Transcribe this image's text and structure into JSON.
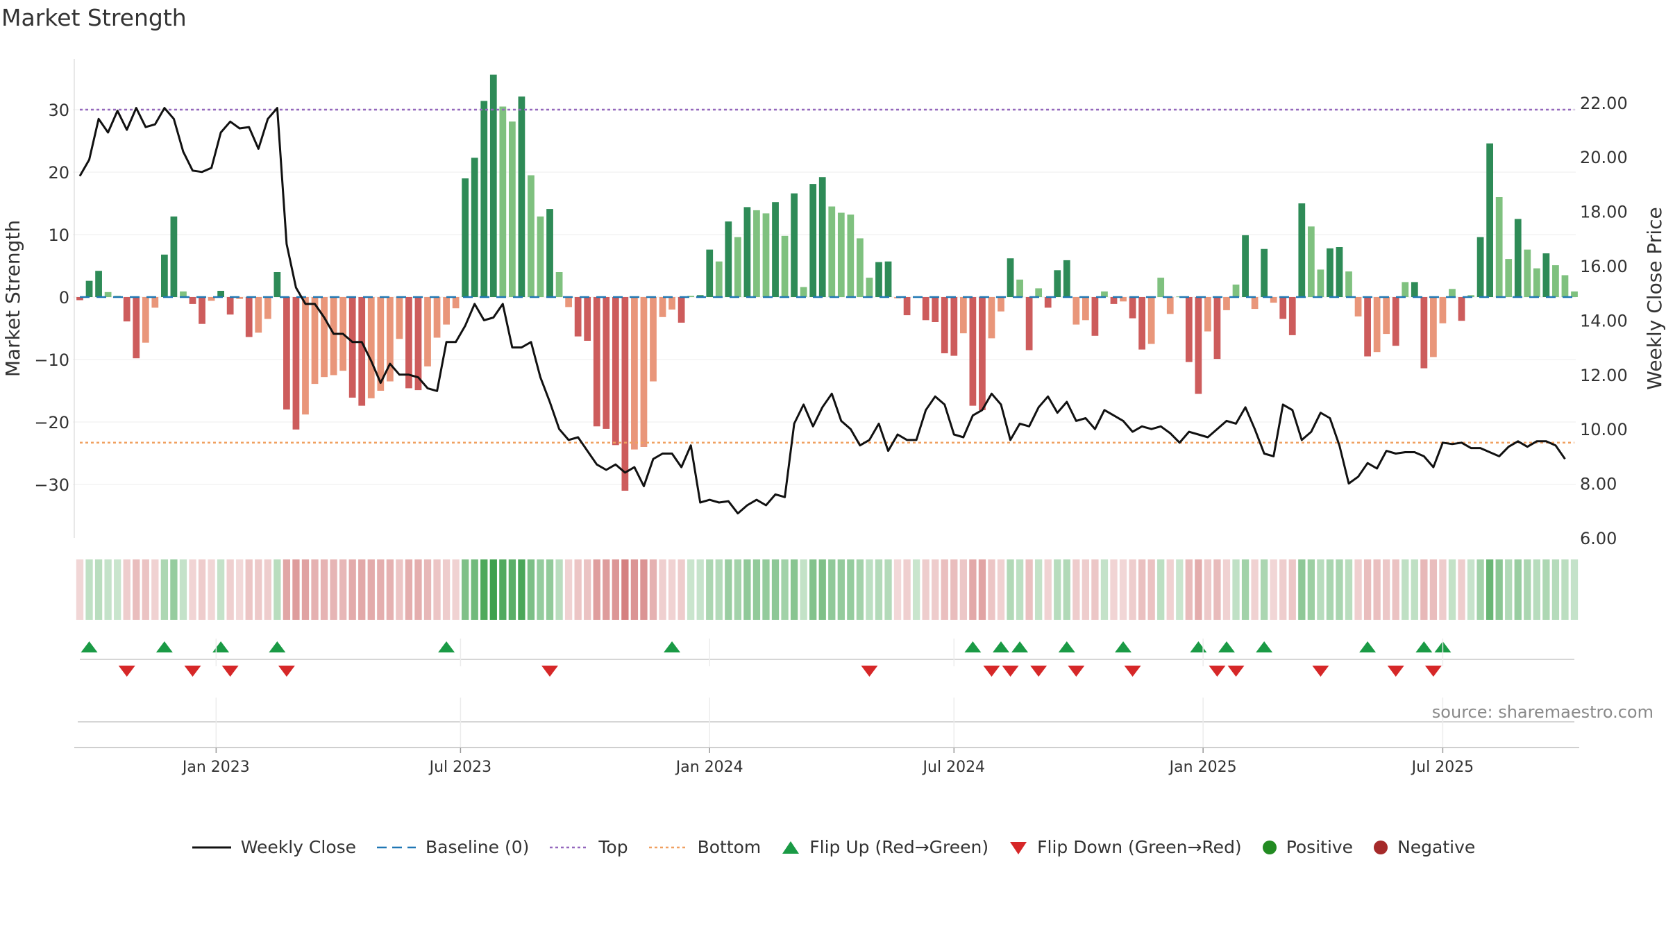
{
  "title": "Market Strength",
  "source": "source: sharemaestro.com",
  "legend": {
    "weekly_close": "Weekly Close",
    "baseline": "Baseline (0)",
    "top": "Top",
    "bottom": "Bottom",
    "flip_up": "Flip Up (Red→Green)",
    "flip_down": "Flip Down (Green→Red)",
    "positive": "Positive",
    "negative": "Negative"
  },
  "colors": {
    "pos_strong": "#2e8b57",
    "pos_light": "#7fc17f",
    "neg_strong": "#cd5c5c",
    "neg_light": "#e9967a",
    "price": "#111111",
    "baseline": "#1f77b4",
    "top": "#9467bd",
    "bottom": "#f0a060",
    "flip_up": "#1a9a45",
    "flip_down": "#d62728",
    "positive_dot": "#228b22",
    "negative_dot": "#a52a2a"
  },
  "chart_data": {
    "type": "bar",
    "ylabel": "Market Strength",
    "y2label": "Weekly Close Price",
    "ylim": [
      -38,
      38
    ],
    "y2lim": [
      6,
      23
    ],
    "yticks": [
      30,
      20,
      10,
      0,
      -10,
      -20,
      -30
    ],
    "ytick_labels": [
      "30",
      "20",
      "10",
      "0",
      "−10",
      "−20",
      "−30"
    ],
    "y2ticks": [
      22,
      20,
      18,
      16,
      14,
      12,
      10,
      8,
      6
    ],
    "y2tick_labels": [
      "22.00",
      "20.00",
      "18.00",
      "16.00",
      "14.00",
      "12.00",
      "10.00",
      "8.00",
      "6.00"
    ],
    "xlabels": [
      "Jan 2023",
      "Jul 2023",
      "Jan 2024",
      "Jul 2024",
      "Jan 2025",
      "Jul 2025"
    ],
    "xlabel_weeks": [
      14.5,
      40.5,
      67,
      93,
      119.5,
      145
    ],
    "top": 30,
    "bottom": -23.3,
    "strength": [
      -0.5,
      2.6,
      4.2,
      0.8,
      0.2,
      -3.9,
      -9.8,
      -7.3,
      -1.7,
      6.8,
      12.9,
      0.9,
      -1.1,
      -4.3,
      -0.6,
      1.0,
      -2.8,
      -0.3,
      -6.4,
      -5.7,
      -3.5,
      4.0,
      -18.0,
      -21.2,
      -18.8,
      -13.9,
      -12.8,
      -12.5,
      -11.8,
      -16.1,
      -17.4,
      -16.2,
      -15.0,
      -13.5,
      -6.7,
      -14.6,
      -14.9,
      -11.1,
      -6.5,
      -4.4,
      -1.8,
      19.0,
      22.3,
      31.4,
      35.6,
      30.5,
      28.1,
      32.1,
      19.5,
      12.9,
      14.1,
      4.0,
      -1.6,
      -6.3,
      -7.0,
      -20.7,
      -21.1,
      -23.7,
      -31.0,
      -24.4,
      -24.0,
      -13.5,
      -3.2,
      -2.0,
      -4.1,
      0.2,
      0.3,
      7.6,
      5.7,
      12.1,
      9.6,
      14.4,
      13.9,
      13.4,
      15.2,
      9.8,
      16.6,
      1.6,
      18.1,
      19.2,
      14.5,
      13.5,
      13.2,
      9.4,
      3.1,
      5.6,
      5.7,
      -0.2,
      -2.9,
      0.1,
      -3.7,
      -4.0,
      -9.0,
      -9.4,
      -5.8,
      -17.4,
      -18.1,
      -6.6,
      -2.3,
      6.2,
      2.8,
      -8.5,
      1.4,
      -1.7,
      4.3,
      5.9,
      -4.4,
      -3.7,
      -6.2,
      0.9,
      -1.1,
      -0.7,
      -3.4,
      -8.4,
      -7.5,
      3.1,
      -2.7,
      0.1,
      -10.4,
      -15.5,
      -5.5,
      -9.9,
      -2.1,
      2.0,
      9.9,
      -1.9,
      7.7,
      -0.9,
      -3.5,
      -6.1,
      15.0,
      11.3,
      4.4,
      7.8,
      8.0,
      4.1,
      -3.1,
      -9.5,
      -8.8,
      -5.9,
      -7.8,
      2.4,
      2.4,
      -11.4,
      -9.6,
      -4.2,
      1.3,
      -3.8,
      0.3,
      9.6,
      24.6,
      16.0,
      6.1,
      12.5,
      7.6,
      4.6,
      7.0,
      5.1,
      3.5,
      0.9
    ],
    "price": [
      19.3,
      19.9,
      21.4,
      20.9,
      21.7,
      21.0,
      21.8,
      21.1,
      21.2,
      21.8,
      21.4,
      20.2,
      19.5,
      19.45,
      19.6,
      20.9,
      21.3,
      21.05,
      21.1,
      20.3,
      21.4,
      21.8,
      16.8,
      15.2,
      14.6,
      14.6,
      14.1,
      13.5,
      13.5,
      13.2,
      13.2,
      12.5,
      11.7,
      12.4,
      12.0,
      12.0,
      11.9,
      11.5,
      11.4,
      13.2,
      13.2,
      13.8,
      14.6,
      14.0,
      14.1,
      14.6,
      13.0,
      13.0,
      13.2,
      11.9,
      11.0,
      10.0,
      9.6,
      9.7,
      9.2,
      8.7,
      8.5,
      8.7,
      8.4,
      8.6,
      7.9,
      8.9,
      9.1,
      9.1,
      8.6,
      9.4,
      7.3,
      7.4,
      7.3,
      7.35,
      6.9,
      7.2,
      7.4,
      7.2,
      7.6,
      7.5,
      10.2,
      10.9,
      10.1,
      10.8,
      11.3,
      10.3,
      10.0,
      9.4,
      9.6,
      10.2,
      9.2,
      9.8,
      9.6,
      9.6,
      10.7,
      11.2,
      10.9,
      9.8,
      9.7,
      10.5,
      10.7,
      11.3,
      10.9,
      9.6,
      10.2,
      10.1,
      10.8,
      11.2,
      10.6,
      11.0,
      10.3,
      10.4,
      10.0,
      10.7,
      10.5,
      10.3,
      9.9,
      10.1,
      10.0,
      10.1,
      9.85,
      9.5,
      9.9,
      9.8,
      9.7,
      10.0,
      10.3,
      10.2,
      10.8,
      10.0,
      9.1,
      9.0,
      10.9,
      10.7,
      9.6,
      9.9,
      10.6,
      10.4,
      9.4,
      8.0,
      8.25,
      8.75,
      8.55,
      9.2,
      9.1,
      9.15,
      9.15,
      9.0,
      8.6,
      9.5,
      9.45,
      9.5,
      9.3,
      9.3,
      9.15,
      9.0,
      9.35,
      9.55,
      9.35,
      9.55,
      9.55,
      9.4,
      8.9
    ],
    "flip_up_weeks": [
      1,
      9,
      15,
      21,
      39,
      63,
      95,
      98,
      100,
      105,
      111,
      119,
      122,
      126,
      137,
      143,
      145
    ],
    "flip_down_weeks": [
      5,
      12,
      16,
      22,
      50,
      84,
      97,
      99,
      102,
      106,
      112,
      121,
      123,
      132,
      140,
      144
    ]
  }
}
